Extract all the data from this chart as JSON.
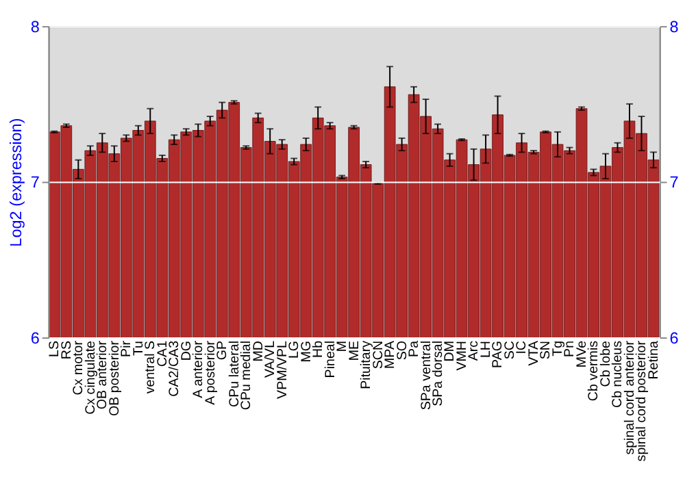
{
  "chart_data": {
    "type": "bar",
    "ylabel": "Log2 (expression)",
    "categories": [
      "LS",
      "RS",
      "Cx motor",
      "Cx cingulate",
      "OB anterior",
      "OB posterior",
      "Pir",
      "Tu",
      "ventral S",
      "CA1",
      "CA2/CA3",
      "DG",
      "A anterior",
      "A posterior",
      "GP",
      "CPu lateral",
      "CPu medial",
      "MD",
      "VA/VL",
      "VPM/VPL",
      "LG",
      "MG",
      "Hb",
      "Pineal",
      "M",
      "ME",
      "Pituitary",
      "SCN",
      "MPA",
      "SO",
      "Pa",
      "SPa ventral",
      "SPa dorsal",
      "DM",
      "VMH",
      "Arc",
      "LH",
      "PAG",
      "SC",
      "IC",
      "VTA",
      "SN",
      "Tg",
      "Pn",
      "MVe",
      "Cb vermis",
      "Cb lobe",
      "Cb nucleus",
      "spinal cord anterior",
      "spinal cord posterior",
      "Retina"
    ],
    "series": [
      {
        "color": "#b22b2b",
        "values": [
          7.32,
          7.36,
          7.08,
          7.2,
          7.25,
          7.18,
          7.28,
          7.33,
          7.39,
          7.15,
          7.27,
          7.32,
          7.33,
          7.39,
          7.46,
          7.51,
          7.22,
          7.41,
          7.26,
          7.24,
          7.13,
          7.24,
          7.41,
          7.36,
          7.03,
          7.35,
          7.11,
          6.99,
          7.61,
          7.24,
          7.56,
          7.42,
          7.34,
          7.14,
          7.27,
          7.11,
          7.21,
          7.43,
          7.17,
          7.25,
          7.19,
          7.32,
          7.24,
          7.2,
          7.47,
          7.06,
          7.1,
          7.22,
          7.39,
          7.31,
          7.14
        ],
        "errors": [
          0.005,
          0.01,
          0.06,
          0.03,
          0.06,
          0.05,
          0.02,
          0.03,
          0.08,
          0.02,
          0.03,
          0.02,
          0.04,
          0.03,
          0.05,
          0.01,
          0.01,
          0.03,
          0.08,
          0.03,
          0.02,
          0.04,
          0.07,
          0.02,
          0.01,
          0.01,
          0.02,
          0.005,
          0.13,
          0.04,
          0.05,
          0.11,
          0.03,
          0.04,
          0.005,
          0.1,
          0.09,
          0.12,
          0.005,
          0.06,
          0.01,
          0.005,
          0.08,
          0.02,
          0.01,
          0.02,
          0.08,
          0.03,
          0.11,
          0.11,
          0.05
        ]
      }
    ],
    "ylim": [
      6,
      8
    ],
    "yticks": [
      6,
      7,
      8
    ],
    "y2lim": [
      6,
      8
    ],
    "y2ticks": [
      6,
      7,
      8
    ],
    "grid": "y"
  }
}
